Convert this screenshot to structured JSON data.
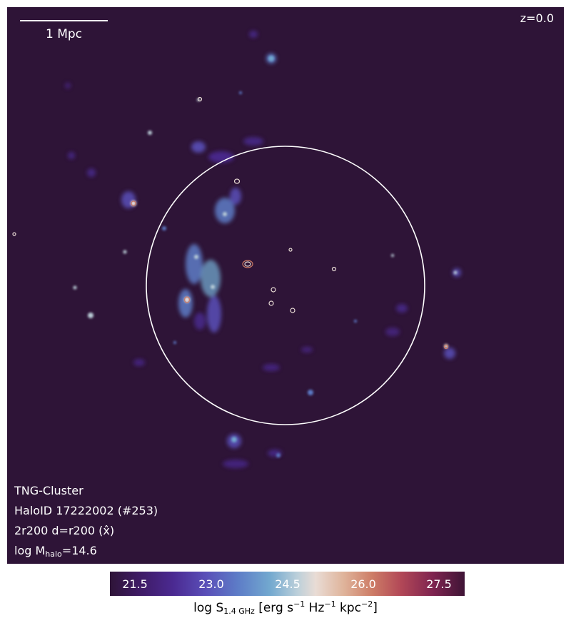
{
  "image": {
    "background_color": "#2e1437",
    "redshift_label": "z=0.0",
    "scalebar_label": "1 Mpc",
    "info": {
      "line1": "TNG-Cluster",
      "line2": "HaloID 17222002 (#253)",
      "line3": "2r200 d=r200 (x̂)",
      "line4_prefix": "log M",
      "line4_sub": "halo",
      "line4_suffix": "=14.6"
    }
  },
  "colorbar": {
    "ticks": [
      "21.5",
      "23.0",
      "24.5",
      "26.0",
      "27.5"
    ],
    "label": {
      "prefix": "log S",
      "sub": "1.4 GHz",
      "unit_a": " [erg s",
      "sup_a": "−1",
      "unit_b": " Hz",
      "sup_b": "−1",
      "unit_c": " kpc",
      "sup_c": "−2",
      "unit_d": "]"
    },
    "colors": [
      "#2e1437",
      "#4b2a92",
      "#72a8cf",
      "#e9dcd5",
      "#cd7c66",
      "#7f2450",
      "#3e1436"
    ]
  }
}
